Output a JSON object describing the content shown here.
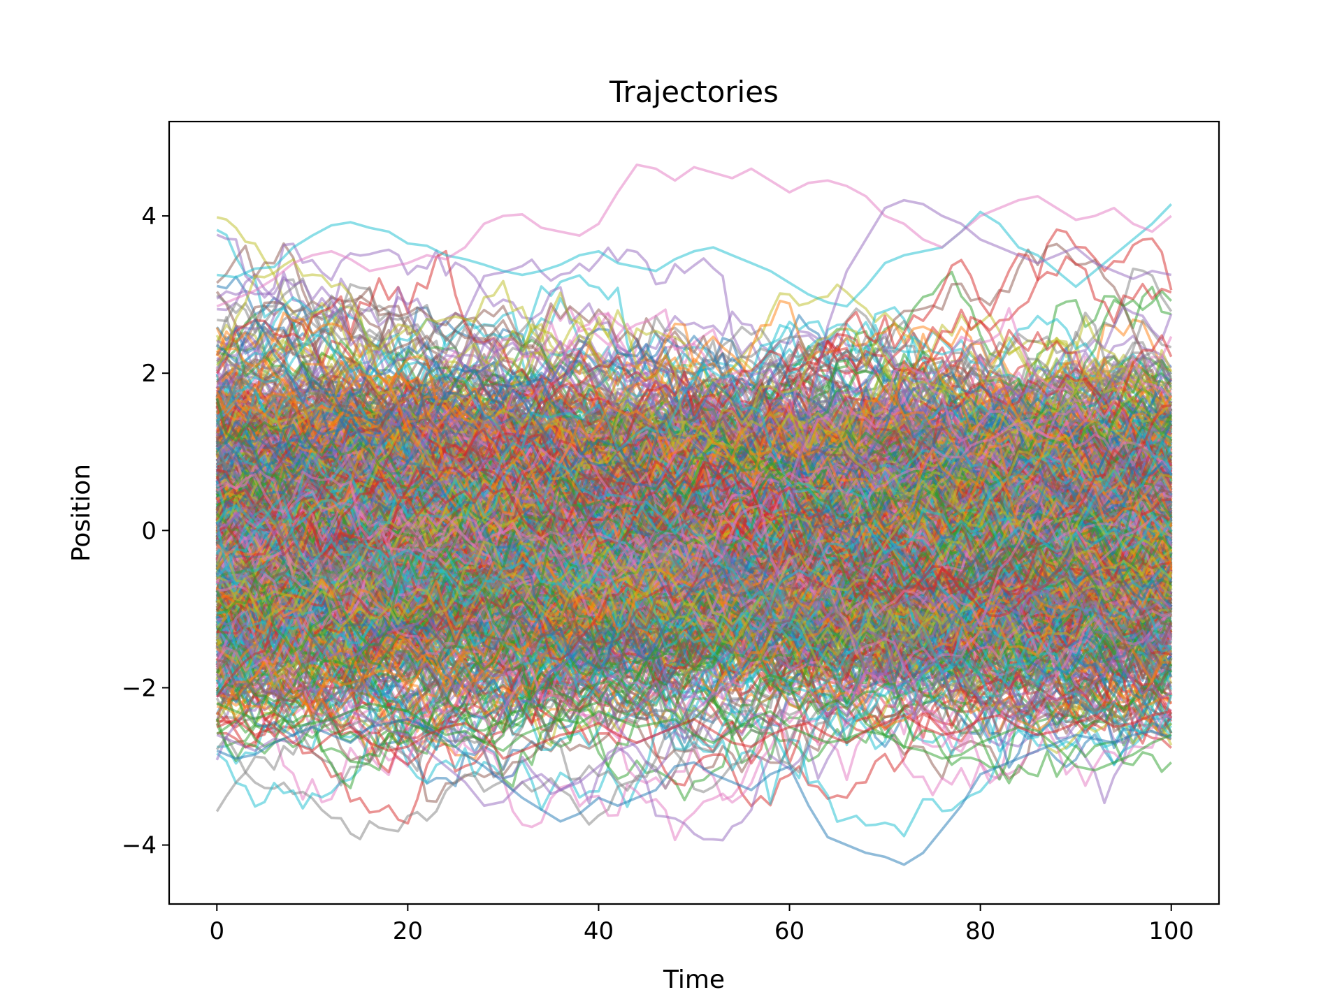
{
  "chart_data": {
    "type": "line",
    "title": "Trajectories",
    "xlabel": "Time",
    "ylabel": "Position",
    "xlim": [
      -5,
      105
    ],
    "ylim": [
      -4.75,
      5.2
    ],
    "xticks": [
      0,
      20,
      40,
      60,
      80,
      100
    ],
    "yticks": [
      -4,
      -2,
      0,
      2,
      4
    ],
    "xtick_labels": [
      "0",
      "20",
      "40",
      "60",
      "80",
      "100"
    ],
    "ytick_labels": [
      "−4",
      "−2",
      "0",
      "2",
      "4"
    ],
    "grid": false,
    "legend": false,
    "series_count": 1000,
    "time_steps": 101,
    "palette": [
      "#1f77b4",
      "#ff7f0e",
      "#2ca02c",
      "#d62728",
      "#9467bd",
      "#8c564b",
      "#e377c2",
      "#7f7f7f",
      "#bcbd22",
      "#17becf"
    ],
    "series": [
      {
        "color": "#17becf",
        "points": [
          [
            0,
            3.25
          ],
          [
            2,
            3.22
          ],
          [
            4,
            3.33
          ],
          [
            6,
            3.35
          ],
          [
            8,
            3.6
          ],
          [
            10,
            3.75
          ],
          [
            12,
            3.88
          ],
          [
            14,
            3.92
          ],
          [
            16,
            3.85
          ],
          [
            18,
            3.8
          ],
          [
            20,
            3.65
          ],
          [
            22,
            3.62
          ],
          [
            24,
            3.5
          ],
          [
            26,
            3.45
          ],
          [
            28,
            3.38
          ],
          [
            30,
            3.3
          ],
          [
            32,
            3.25
          ],
          [
            34,
            3.3
          ],
          [
            36,
            3.38
          ],
          [
            38,
            3.5
          ],
          [
            40,
            3.55
          ],
          [
            42,
            3.4
          ],
          [
            44,
            3.35
          ],
          [
            46,
            3.3
          ],
          [
            48,
            3.45
          ],
          [
            50,
            3.55
          ],
          [
            52,
            3.6
          ],
          [
            54,
            3.5
          ],
          [
            56,
            3.4
          ],
          [
            58,
            3.3
          ],
          [
            60,
            3.15
          ],
          [
            62,
            3.0
          ],
          [
            64,
            2.9
          ],
          [
            66,
            2.85
          ],
          [
            68,
            3.1
          ],
          [
            70,
            3.4
          ],
          [
            72,
            3.5
          ],
          [
            74,
            3.55
          ],
          [
            76,
            3.6
          ],
          [
            78,
            3.8
          ],
          [
            80,
            4.05
          ],
          [
            82,
            3.9
          ],
          [
            84,
            3.6
          ],
          [
            86,
            3.5
          ],
          [
            88,
            3.3
          ],
          [
            90,
            3.1
          ],
          [
            92,
            3.3
          ],
          [
            94,
            3.5
          ],
          [
            96,
            3.7
          ],
          [
            98,
            3.9
          ],
          [
            100,
            4.15
          ]
        ]
      },
      {
        "color": "#e377c2",
        "points": [
          [
            0,
            2.85
          ],
          [
            2,
            2.95
          ],
          [
            4,
            3.05
          ],
          [
            6,
            3.2
          ],
          [
            8,
            3.4
          ],
          [
            10,
            3.5
          ],
          [
            12,
            3.55
          ],
          [
            14,
            3.45
          ],
          [
            16,
            3.3
          ],
          [
            18,
            3.35
          ],
          [
            20,
            3.4
          ],
          [
            22,
            3.5
          ],
          [
            24,
            3.45
          ],
          [
            26,
            3.6
          ],
          [
            28,
            3.9
          ],
          [
            30,
            4.0
          ],
          [
            32,
            4.02
          ],
          [
            34,
            3.85
          ],
          [
            36,
            3.8
          ],
          [
            38,
            3.75
          ],
          [
            40,
            3.9
          ],
          [
            42,
            4.3
          ],
          [
            44,
            4.65
          ],
          [
            46,
            4.6
          ],
          [
            48,
            4.45
          ],
          [
            50,
            4.62
          ],
          [
            52,
            4.55
          ],
          [
            54,
            4.48
          ],
          [
            56,
            4.6
          ],
          [
            58,
            4.45
          ],
          [
            60,
            4.3
          ],
          [
            62,
            4.42
          ],
          [
            64,
            4.45
          ],
          [
            66,
            4.38
          ],
          [
            68,
            4.25
          ],
          [
            70,
            4.0
          ],
          [
            72,
            3.9
          ],
          [
            74,
            3.7
          ],
          [
            76,
            3.6
          ],
          [
            78,
            3.8
          ],
          [
            80,
            4.0
          ],
          [
            82,
            4.1
          ],
          [
            84,
            4.2
          ],
          [
            86,
            4.25
          ],
          [
            88,
            4.1
          ],
          [
            90,
            3.95
          ],
          [
            92,
            4.0
          ],
          [
            94,
            4.1
          ],
          [
            96,
            3.9
          ],
          [
            98,
            3.8
          ],
          [
            100,
            4.0
          ]
        ]
      },
      {
        "color": "#9467bd",
        "points": [
          [
            0,
            -2.6
          ],
          [
            2,
            -2.7
          ],
          [
            4,
            -2.8
          ],
          [
            6,
            -2.65
          ],
          [
            8,
            -2.7
          ],
          [
            10,
            -2.5
          ],
          [
            12,
            -2.4
          ],
          [
            14,
            -2.3
          ],
          [
            16,
            -2.4
          ],
          [
            18,
            -2.55
          ],
          [
            20,
            -2.6
          ],
          [
            22,
            -2.8
          ],
          [
            24,
            -3.0
          ],
          [
            26,
            -3.2
          ],
          [
            28,
            -3.5
          ],
          [
            30,
            -3.45
          ],
          [
            32,
            -3.2
          ],
          [
            34,
            -3.1
          ],
          [
            36,
            -3.3
          ],
          [
            38,
            -3.2
          ],
          [
            40,
            -3.0
          ],
          [
            42,
            -2.8
          ],
          [
            44,
            -2.7
          ],
          [
            46,
            -2.6
          ],
          [
            48,
            -2.5
          ],
          [
            50,
            -2.3
          ],
          [
            52,
            -2.1
          ],
          [
            54,
            -1.9
          ],
          [
            56,
            -1.5
          ],
          [
            58,
            -0.9
          ],
          [
            60,
            0.2
          ],
          [
            62,
            1.5
          ],
          [
            64,
            2.6
          ],
          [
            66,
            3.3
          ],
          [
            68,
            3.7
          ],
          [
            70,
            4.1
          ],
          [
            72,
            4.2
          ],
          [
            74,
            4.15
          ],
          [
            76,
            4.0
          ],
          [
            78,
            3.9
          ],
          [
            80,
            3.7
          ],
          [
            82,
            3.6
          ],
          [
            84,
            3.5
          ],
          [
            86,
            3.4
          ],
          [
            88,
            3.5
          ],
          [
            90,
            3.6
          ],
          [
            92,
            3.4
          ],
          [
            94,
            3.3
          ],
          [
            96,
            3.2
          ],
          [
            98,
            3.3
          ],
          [
            100,
            3.25
          ]
        ]
      },
      {
        "color": "#1f77b4",
        "points": [
          [
            0,
            -2.8
          ],
          [
            2,
            -2.9
          ],
          [
            4,
            -2.85
          ],
          [
            6,
            -2.7
          ],
          [
            8,
            -2.6
          ],
          [
            10,
            -2.5
          ],
          [
            12,
            -2.6
          ],
          [
            14,
            -2.7
          ],
          [
            16,
            -2.5
          ],
          [
            18,
            -2.45
          ],
          [
            20,
            -2.4
          ],
          [
            22,
            -2.5
          ],
          [
            24,
            -2.65
          ],
          [
            26,
            -2.85
          ],
          [
            28,
            -3.0
          ],
          [
            30,
            -3.2
          ],
          [
            32,
            -3.4
          ],
          [
            34,
            -3.55
          ],
          [
            36,
            -3.7
          ],
          [
            38,
            -3.6
          ],
          [
            40,
            -3.4
          ],
          [
            42,
            -3.5
          ],
          [
            44,
            -3.4
          ],
          [
            46,
            -3.3
          ],
          [
            48,
            -3.0
          ],
          [
            50,
            -2.95
          ],
          [
            52,
            -3.1
          ],
          [
            54,
            -3.2
          ],
          [
            56,
            -3.3
          ],
          [
            58,
            -3.1
          ],
          [
            60,
            -3.0
          ],
          [
            62,
            -3.5
          ],
          [
            64,
            -3.9
          ],
          [
            66,
            -4.0
          ],
          [
            68,
            -4.1
          ],
          [
            70,
            -4.15
          ],
          [
            72,
            -4.25
          ],
          [
            74,
            -4.1
          ],
          [
            76,
            -3.8
          ],
          [
            78,
            -3.5
          ],
          [
            80,
            -3.1
          ],
          [
            82,
            -3.0
          ],
          [
            84,
            -2.9
          ],
          [
            86,
            -2.8
          ],
          [
            88,
            -2.7
          ],
          [
            90,
            -2.6
          ],
          [
            92,
            -2.65
          ],
          [
            94,
            -2.7
          ],
          [
            96,
            -2.6
          ],
          [
            98,
            -2.55
          ],
          [
            100,
            -2.65
          ]
        ]
      },
      {
        "color": "#2ca02c",
        "points": [
          [
            0,
            -2.2
          ],
          [
            2,
            -2.3
          ],
          [
            4,
            -2.4
          ],
          [
            6,
            -2.3
          ],
          [
            8,
            -2.5
          ],
          [
            10,
            -2.45
          ],
          [
            12,
            -2.4
          ],
          [
            14,
            -2.3
          ],
          [
            16,
            -2.2
          ],
          [
            18,
            -2.25
          ],
          [
            20,
            -2.3
          ],
          [
            22,
            -2.45
          ],
          [
            24,
            -2.6
          ],
          [
            26,
            -2.55
          ],
          [
            28,
            -2.7
          ],
          [
            30,
            -2.8
          ],
          [
            32,
            -2.6
          ],
          [
            34,
            -2.5
          ],
          [
            36,
            -2.4
          ],
          [
            38,
            -2.45
          ],
          [
            40,
            -2.3
          ],
          [
            42,
            -2.4
          ],
          [
            44,
            -2.5
          ],
          [
            46,
            -2.45
          ],
          [
            48,
            -2.4
          ],
          [
            50,
            -2.6
          ],
          [
            52,
            -2.7
          ],
          [
            54,
            -2.55
          ],
          [
            56,
            -2.4
          ],
          [
            58,
            -2.3
          ],
          [
            60,
            -2.5
          ],
          [
            62,
            -2.6
          ],
          [
            64,
            -2.7
          ],
          [
            66,
            -2.65
          ],
          [
            68,
            -2.55
          ],
          [
            70,
            -2.6
          ],
          [
            72,
            -2.75
          ],
          [
            74,
            -2.8
          ],
          [
            76,
            -2.9
          ],
          [
            78,
            -2.85
          ],
          [
            80,
            -2.7
          ],
          [
            82,
            -2.6
          ],
          [
            84,
            -2.5
          ],
          [
            86,
            -2.55
          ],
          [
            88,
            -2.75
          ],
          [
            90,
            -3.0
          ],
          [
            92,
            -3.05
          ],
          [
            94,
            -2.95
          ],
          [
            96,
            -2.85
          ],
          [
            98,
            -2.7
          ],
          [
            100,
            -2.6
          ]
        ]
      },
      {
        "color": "#d62728",
        "points": [
          [
            0,
            -2.5
          ],
          [
            2,
            -2.4
          ],
          [
            4,
            -2.6
          ],
          [
            6,
            -2.5
          ],
          [
            8,
            -2.7
          ],
          [
            10,
            -2.8
          ],
          [
            12,
            -2.6
          ],
          [
            14,
            -2.5
          ],
          [
            16,
            -2.7
          ],
          [
            18,
            -2.8
          ],
          [
            20,
            -2.75
          ],
          [
            22,
            -2.6
          ],
          [
            24,
            -2.5
          ],
          [
            26,
            -2.45
          ],
          [
            28,
            -2.6
          ],
          [
            30,
            -2.9
          ],
          [
            32,
            -2.8
          ],
          [
            34,
            -2.7
          ],
          [
            36,
            -2.6
          ],
          [
            38,
            -2.55
          ],
          [
            40,
            -2.45
          ],
          [
            42,
            -2.6
          ],
          [
            44,
            -2.7
          ],
          [
            46,
            -2.6
          ],
          [
            48,
            -2.5
          ],
          [
            50,
            -2.4
          ],
          [
            52,
            -2.55
          ],
          [
            54,
            -2.7
          ],
          [
            56,
            -2.75
          ],
          [
            58,
            -2.6
          ],
          [
            60,
            -2.5
          ],
          [
            62,
            -2.45
          ],
          [
            64,
            -2.6
          ],
          [
            66,
            -2.7
          ],
          [
            68,
            -2.55
          ],
          [
            70,
            -2.45
          ],
          [
            72,
            -2.35
          ],
          [
            74,
            -2.5
          ],
          [
            76,
            -2.6
          ],
          [
            78,
            -2.55
          ],
          [
            80,
            -2.4
          ],
          [
            82,
            -2.35
          ],
          [
            84,
            -2.5
          ],
          [
            86,
            -2.6
          ],
          [
            88,
            -2.55
          ],
          [
            90,
            -2.45
          ],
          [
            92,
            -2.35
          ],
          [
            94,
            -2.5
          ],
          [
            96,
            -2.45
          ],
          [
            98,
            -2.35
          ],
          [
            100,
            -2.3
          ]
        ]
      }
    ]
  }
}
